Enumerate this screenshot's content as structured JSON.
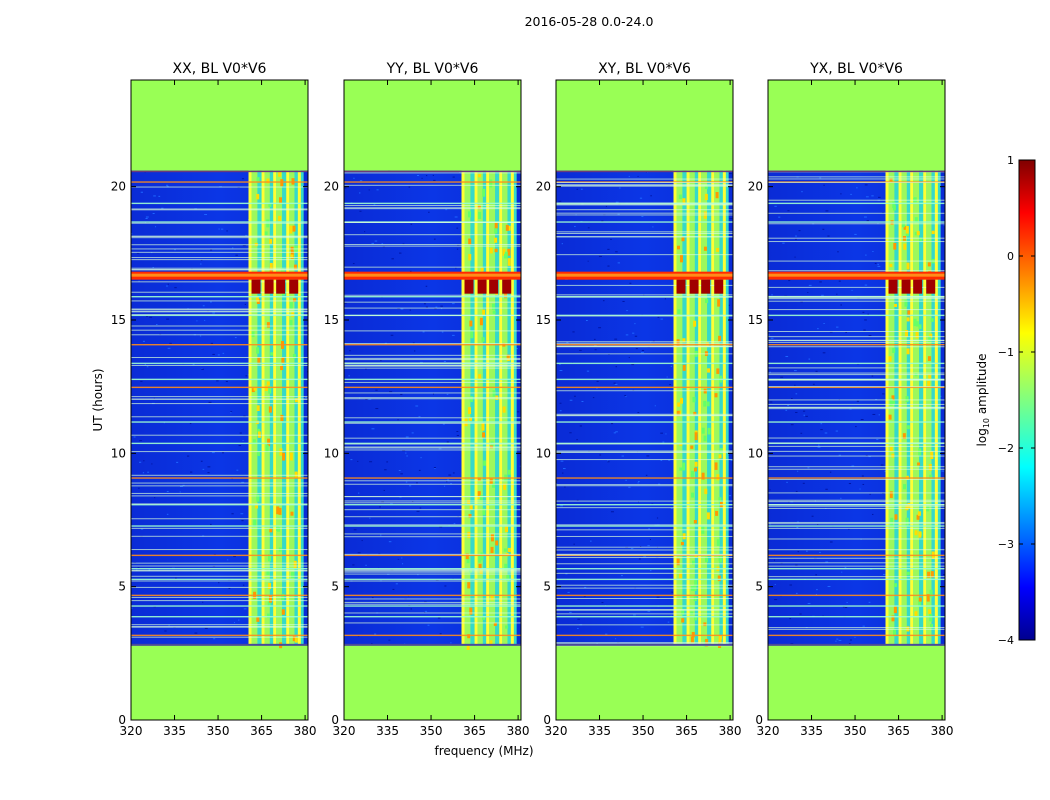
{
  "suptitle": "2016-05-28 0.0-24.0",
  "chart_data": {
    "type": "heatmap",
    "suptitle": "2016-05-28 0.0-24.0",
    "xlabel": "frequency (MHz)",
    "ylabel": "UT (hours)",
    "xlim": [
      320,
      381
    ],
    "ylim": [
      0,
      24
    ],
    "xticks": [
      320,
      335,
      350,
      365,
      380
    ],
    "yticks": [
      0,
      5,
      10,
      15,
      20
    ],
    "observed_time_range_hours": [
      2.8,
      20.6
    ],
    "no_data_fill": "#99ff55",
    "hot_band": {
      "x": [
        360.5,
        379.5
      ],
      "columns": [
        360.5,
        365,
        369,
        373.5,
        377.5
      ]
    },
    "rfi_rows_hours": [
      3.2,
      3.9,
      4.3,
      4.7,
      5.3,
      5.7,
      6.2,
      7.3,
      8.1,
      9.1,
      10.4,
      11.2,
      12.5,
      12.8,
      13.4,
      14.1,
      15.2,
      15.9,
      16.6,
      18.7,
      19.4,
      20.2
    ],
    "strong_rfi_hour": 16.7,
    "panels": [
      {
        "title": "XX, BL V0*V6",
        "polarization": "XX",
        "baseline": "V0*V6"
      },
      {
        "title": "YY, BL V0*V6",
        "polarization": "YY",
        "baseline": "V0*V6"
      },
      {
        "title": "XY, BL V0*V6",
        "polarization": "XY",
        "baseline": "V0*V6"
      },
      {
        "title": "YX, BL V0*V6",
        "polarization": "YX",
        "baseline": "V0*V6"
      }
    ],
    "colorbar": {
      "label": "log10 amplitude",
      "label_base": "log",
      "label_sub": "10",
      "label_rest": " amplitude",
      "range": [
        -4,
        1
      ],
      "ticks": [
        "1",
        "0",
        "−1",
        "−2",
        "−3",
        "−4"
      ],
      "colormap": "jet"
    }
  }
}
